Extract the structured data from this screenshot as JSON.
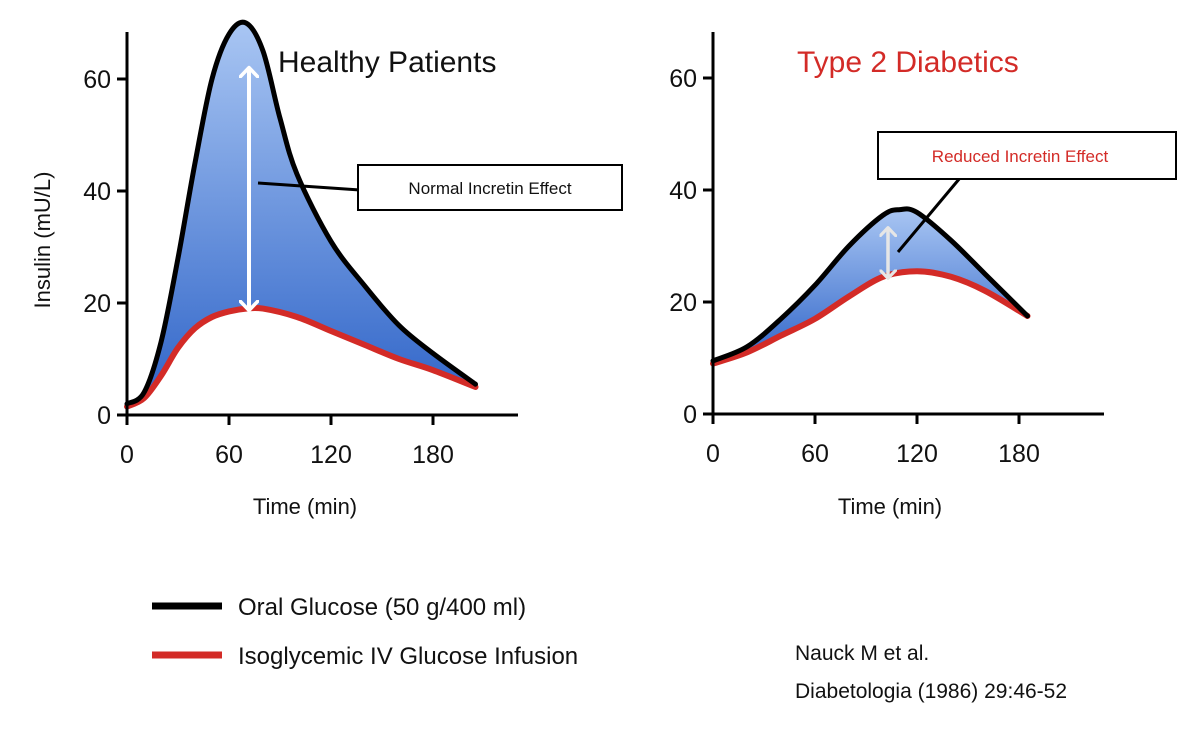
{
  "colors": {
    "oral_line": "#000000",
    "iv_line": "#d32b27",
    "fill_top": "#a9c6f3",
    "fill_bottom": "#2f64c8",
    "arrow": "#ffffff",
    "arrow_small": "#e6e6e6",
    "title_healthy": "#111111",
    "title_diabetic": "#d32b27"
  },
  "chart_data": [
    {
      "type": "line",
      "title": "Healthy Patients",
      "xlabel": "Time (min)",
      "ylabel": "Insulin (mU/L)",
      "xlim": [
        0,
        230
      ],
      "ylim": [
        0,
        68
      ],
      "xticks": [
        0,
        60,
        120,
        180
      ],
      "yticks": [
        0,
        20,
        40,
        60
      ],
      "annotation": "Normal Incretin Effect",
      "shaded_between_series": true,
      "series": [
        {
          "name": "Oral Glucose (50 g/400 ml)",
          "color": "#000000",
          "x": [
            0,
            10,
            20,
            30,
            40,
            50,
            60,
            70,
            80,
            90,
            100,
            120,
            140,
            160,
            180,
            205
          ],
          "y": [
            2,
            4,
            13,
            28,
            45,
            60,
            68,
            70,
            65,
            53,
            43,
            31,
            23,
            16,
            11,
            5.5
          ]
        },
        {
          "name": "Isoglycemic IV Glucose Infusion",
          "color": "#d32b27",
          "x": [
            0,
            10,
            20,
            30,
            40,
            50,
            60,
            70,
            80,
            100,
            120,
            140,
            160,
            180,
            205
          ],
          "y": [
            1.5,
            3,
            7,
            12,
            15.5,
            17.5,
            18.5,
            19,
            19,
            17.5,
            15,
            12.5,
            10,
            8,
            5
          ]
        }
      ]
    },
    {
      "type": "line",
      "title": "Type 2 Diabetics",
      "xlabel": "Time (min)",
      "ylabel": "",
      "xlim": [
        0,
        230
      ],
      "ylim": [
        0,
        68
      ],
      "xticks": [
        0,
        60,
        120,
        180
      ],
      "yticks": [
        0,
        20,
        40,
        60
      ],
      "annotation": "Reduced Incretin Effect",
      "shaded_between_series": true,
      "series": [
        {
          "name": "Oral Glucose (50 g/400 ml)",
          "color": "#000000",
          "x": [
            0,
            20,
            40,
            60,
            80,
            100,
            110,
            120,
            140,
            160,
            185
          ],
          "y": [
            9.5,
            12,
            17,
            23,
            30,
            35.5,
            36.5,
            36,
            31,
            25,
            17.5
          ]
        },
        {
          "name": "Isoglycemic IV Glucose Infusion",
          "color": "#d32b27",
          "x": [
            0,
            20,
            40,
            60,
            80,
            100,
            120,
            140,
            160,
            185
          ],
          "y": [
            9,
            11,
            14,
            17,
            21,
            24.5,
            25.5,
            24.5,
            22,
            17.5
          ]
        }
      ]
    }
  ],
  "legend": [
    {
      "label": "Oral Glucose (50 g/400 ml)",
      "color": "#000000"
    },
    {
      "label": "Isoglycemic IV Glucose Infusion",
      "color": "#d32b27"
    }
  ],
  "citation": {
    "line1": "Nauck M et al.",
    "line2": "Diabetologia (1986) 29:46-52"
  }
}
